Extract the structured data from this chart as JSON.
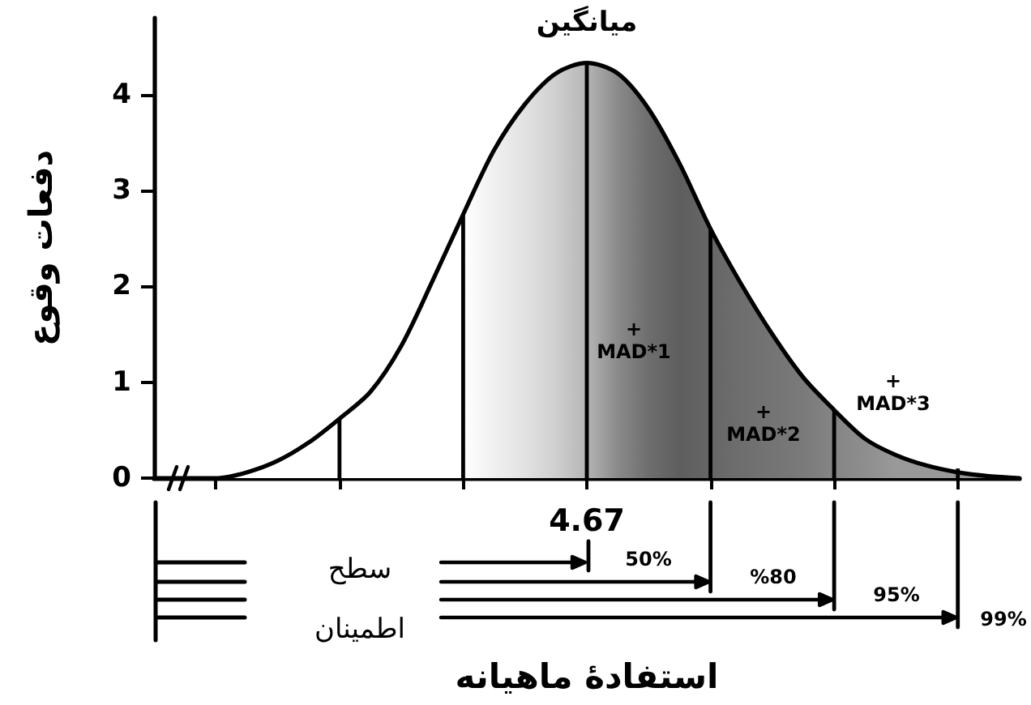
{
  "chart_data": {
    "type": "area",
    "xlabel": "استفادهٔ ماهیانه",
    "ylabel": "دفعات وقوع",
    "categories": [
      null,
      null,
      null,
      null,
      null,
      null,
      null,
      null,
      null,
      null,
      null,
      null,
      null,
      null,
      "4.67",
      null,
      null,
      null,
      null,
      null,
      null,
      null,
      null,
      null,
      null,
      null,
      null,
      null,
      null
    ],
    "ylim": [
      0,
      4.8
    ],
    "yticks": [
      0,
      1,
      2,
      3,
      4
    ],
    "marker": "none",
    "series": [
      {
        "color": "#000000",
        "colors": [
          "#ffffff",
          "#ffffff",
          "#ffffff",
          "#ffffff",
          "#ffffff",
          "#ffffff",
          "#ffffff",
          "#ffffff",
          "#ffffff",
          "#ffffff",
          "#ffffff",
          "#f0f0f0",
          "#e2e2e2",
          "#cfcfcf",
          "#b5b5b5",
          "#8a8a8a",
          "#6e6e6e",
          "#5e5e5e",
          "#666666",
          "#6e6e6e",
          "#747474",
          "#7a7a7a",
          "#858585",
          "#8e8e8e",
          "#999999",
          "#999999",
          "#999999",
          "#999999",
          "#999999"
        ],
        "values": [
          0,
          0,
          0,
          0.06,
          0.18,
          0.37,
          0.62,
          0.9,
          1.38,
          2.05,
          2.75,
          3.42,
          3.9,
          4.22,
          4.33,
          4.22,
          3.85,
          3.28,
          2.6,
          2.02,
          1.5,
          1.05,
          0.71,
          0.41,
          0.24,
          0.13,
          0.06,
          0.02,
          0
        ]
      },
      {
        "type": "bar",
        "color": "#000000",
        "values": [
          null,
          null,
          null,
          null,
          null,
          null,
          0.62,
          null,
          null,
          null,
          2.75,
          null,
          null,
          null,
          4.33,
          null,
          null,
          null,
          2.6,
          null,
          null,
          null,
          0.71,
          null,
          null,
          null,
          0.1,
          null,
          null
        ]
      }
    ],
    "annotations": [
      {
        "text": "میانگین",
        "x": "4.67",
        "y": 4.33
      },
      "+ MAD*1",
      "+ MAD*2",
      "+ MAD*3",
      "سطح اطمینان",
      "50%",
      "%80",
      "95%",
      "99%"
    ]
  }
}
